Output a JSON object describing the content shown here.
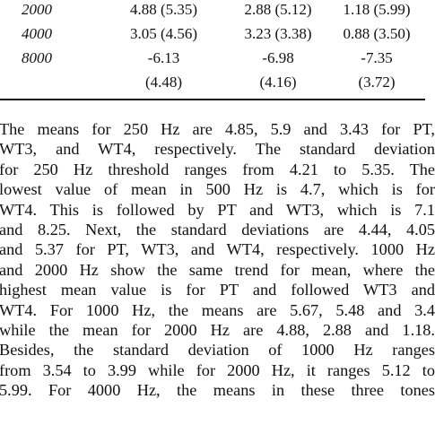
{
  "table": {
    "rows": [
      {
        "freq": "2000",
        "pt": "4.88 (5.35)",
        "wt3": "2.88 (5.12)",
        "wt4": "1.18 (5.99)"
      },
      {
        "freq": "4000",
        "pt": "3.05 (4.56)",
        "wt3": "3.23 (3.38)",
        "wt4": "0.88 (3.50)"
      },
      {
        "freq": "8000",
        "pt": "-6.13",
        "wt3": "-6.98",
        "wt4": "-7.35"
      },
      {
        "freq": "",
        "pt": "(4.48)",
        "wt3": "(4.16)",
        "wt4": "(3.72)"
      }
    ]
  },
  "paragraph": {
    "lines": [
      "The means for 250 Hz are 4.85, 5.9 and 3.43 for PT,",
      "WT3, and WT4, respectively. The standard deviation",
      "for 250 Hz threshold ranges from 4.21 to 5.35. The",
      "lowest value of mean in 500 Hz is 4.7, which is for",
      "WT4. This is followed by PT and WT3, which is 7.1",
      "and 8.25. Next, the standard deviations are 4.44, 4.05",
      "and 5.37 for PT, WT3, and WT4, respectively. 1000 Hz",
      "and 2000 Hz show the same trend for mean, where the",
      "highest mean value is for PT and followed WT3 and",
      "WT4. For 1000 Hz, the means are 5.67, 5.48 and 3.4",
      "while the mean for 2000 Hz are 4.88, 2.88 and 1.18.",
      "Besides, the standard deviation of 1000 Hz ranges",
      "from 3.54 to 3.99 while for 2000 Hz, it ranges 5.12 to",
      "5.99. For 4000 Hz, the means in these three tones"
    ]
  }
}
